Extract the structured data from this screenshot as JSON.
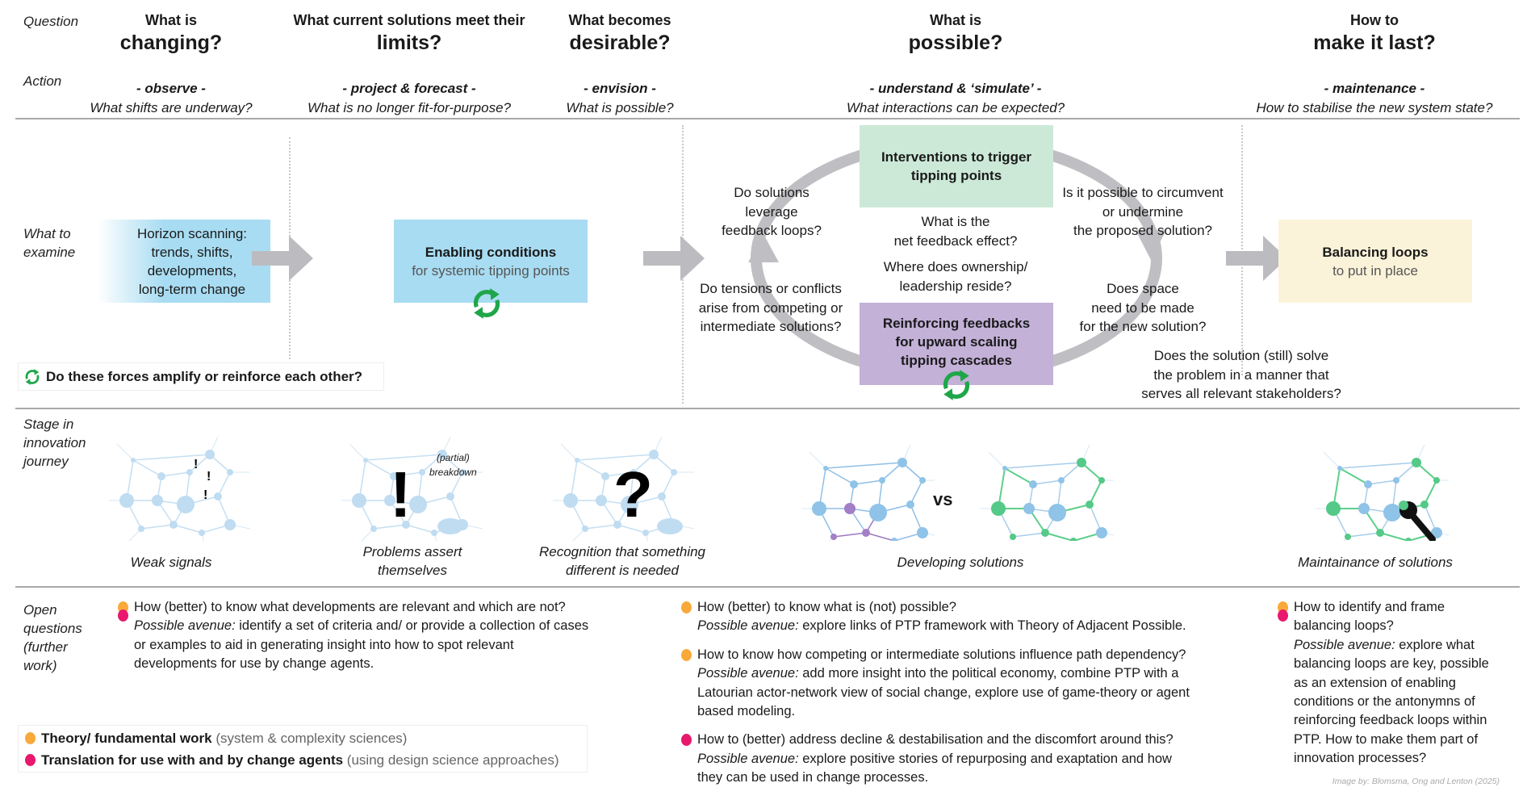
{
  "row_labels": {
    "question": "Question",
    "action": "Action",
    "what_to_examine": "What to\nexamine",
    "stage": "Stage in\ninnovation\njourney",
    "open_questions": "Open\nquestions\n(further\nwork)"
  },
  "columns": [
    {
      "question_small": "What is",
      "question_big": "changing?",
      "action": "- observe -",
      "action_question": "What shifts are underway?"
    },
    {
      "question_small": "What current solutions meet their",
      "question_big": "limits?",
      "action": "- project & forecast -",
      "action_question": "What is no longer fit-for-purpose?"
    },
    {
      "question_small": "What becomes",
      "question_big": "desirable?",
      "action": "- envision -",
      "action_question": "What is possible?"
    },
    {
      "question_small": "What is",
      "question_big": "possible?",
      "action": "- understand & ‘simulate’ -",
      "action_question": "What interactions can be expected?"
    },
    {
      "question_small": "How to",
      "question_big": "make it last?",
      "action": "- maintenance -",
      "action_question": "How to stabilise the new system state?"
    }
  ],
  "examine": {
    "horizon": "Horizon scanning:\ntrends, shifts,\ndevelopments,\nlong-term change",
    "enabling_title": "Enabling conditions",
    "enabling_sub": "for systemic tipping points",
    "interventions": "Interventions to trigger\ntipping points",
    "reinforcing": "Reinforcing feedbacks\nfor upward scaling\ntipping cascades",
    "balancing_title": "Balancing loops",
    "balancing_sub": "to put in place",
    "loop_questions": {
      "leverage": "Do solutions\nleverage\nfeedback loops?",
      "tensions": "Do tensions or conflicts\narise from competing or\nintermediate solutions?",
      "net_effect": "What is the\nnet feedback effect?",
      "ownership": "Where does ownership/\nleadership reside?",
      "circumvent": "Is it possible to circumvent\nor undermine\nthe proposed solution?",
      "space": "Does space\nneed to be made\nfor the new solution?",
      "still_solve": "Does the solution (still) solve\nthe problem in a manner that\nserves all relevant stakeholders?"
    },
    "amplify_question": "Do these forces amplify or reinforce each other?"
  },
  "stages": {
    "weak_signals": "Weak signals",
    "problems": "Problems assert\nthemselves",
    "partial_breakdown": "(partial)\nbreakdown",
    "recognition": "Recognition that something\ndifferent is needed",
    "vs": "vs",
    "developing": "Developing solutions",
    "maintenance": "Maintainance of solutions"
  },
  "colors": {
    "theory": "#f9a93a",
    "translation": "#e8186f",
    "recycle": "#1fa64a",
    "horizon_box": "#a8dcf2",
    "interventions_box": "#cce9d8",
    "reinforcing_box": "#c3b1d8",
    "balancing_box": "#fbf3d9",
    "loop": "#bfbfc3"
  },
  "open_questions": {
    "col1": [
      {
        "dots": [
          "theory",
          "translation"
        ],
        "question": "How (better) to know what developments are relevant and which are not?",
        "avenue_label": "Possible avenue:",
        "avenue_text": " identify a set of criteria and/ or provide a collection of cases\nor examples to aid in generating insight into how to spot relevant\ndevelopments for use by change agents."
      }
    ],
    "col2": [
      {
        "dots": [
          "theory"
        ],
        "question": "How (better) to know what is (not) possible?",
        "avenue_label": "Possible avenue:",
        "avenue_text": " explore links of PTP framework with Theory of Adjacent Possible."
      },
      {
        "dots": [
          "theory"
        ],
        "question": "How to know how competing or intermediate solutions influence path dependency?",
        "avenue_label": "Possible avenue:",
        "avenue_text": " add more insight into the political economy, combine PTP with a\nLatourian actor-network view of social change, explore use of game-theory or agent\nbased modeling."
      },
      {
        "dots": [
          "translation"
        ],
        "question": "How to (better) address decline & destabilisation and the discomfort around this?",
        "avenue_label": "Possible avenue:",
        "avenue_text": " explore positive stories of repurposing and exaptation and how\nthey can be used in change processes."
      }
    ],
    "col3": [
      {
        "dots": [
          "theory",
          "translation"
        ],
        "question": "How to identify and frame\nbalancing loops?",
        "avenue_label": "Possible avenue:",
        "avenue_text": " explore what\nbalancing loops are key, possible\nas an extension of enabling\nconditions or the antonymns of\nreinforcing feedback loops within\nPTP. How to make them part of\ninnovation processes?"
      }
    ]
  },
  "legend": [
    {
      "color": "theory",
      "bold": "Theory/ fundamental work",
      "muted": " (system & complexity sciences)"
    },
    {
      "color": "translation",
      "bold": "Translation for use with and by change agents",
      "muted": " (using design science approaches)"
    }
  ],
  "credit": "Image by: Blomsma, Ong and Lenton (2025)"
}
